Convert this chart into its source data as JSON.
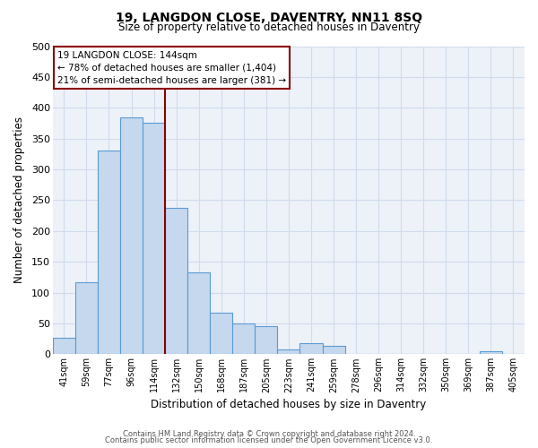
{
  "title": "19, LANGDON CLOSE, DAVENTRY, NN11 8SQ",
  "subtitle": "Size of property relative to detached houses in Daventry",
  "xlabel": "Distribution of detached houses by size in Daventry",
  "ylabel": "Number of detached properties",
  "categories": [
    "41sqm",
    "59sqm",
    "77sqm",
    "96sqm",
    "114sqm",
    "132sqm",
    "150sqm",
    "168sqm",
    "187sqm",
    "205sqm",
    "223sqm",
    "241sqm",
    "259sqm",
    "278sqm",
    "296sqm",
    "314sqm",
    "332sqm",
    "350sqm",
    "369sqm",
    "387sqm",
    "405sqm"
  ],
  "values": [
    27,
    117,
    330,
    385,
    375,
    238,
    133,
    68,
    50,
    45,
    8,
    18,
    13,
    0,
    0,
    0,
    0,
    0,
    0,
    5,
    0
  ],
  "bar_color": "#c5d8ee",
  "bar_edge_color": "#5b9bd5",
  "grid_color": "#d0dcec",
  "background_color": "#edf1f8",
  "marker_index": 5,
  "marker_color": "#8b0000",
  "annotation_title": "19 LANGDON CLOSE: 144sqm",
  "annotation_line1": "← 78% of detached houses are smaller (1,404)",
  "annotation_line2": "21% of semi-detached houses are larger (381) →",
  "annotation_box_color": "#ffffff",
  "annotation_border_color": "#8b0000",
  "ylim": [
    0,
    500
  ],
  "yticks": [
    0,
    50,
    100,
    150,
    200,
    250,
    300,
    350,
    400,
    450,
    500
  ],
  "footer1": "Contains HM Land Registry data © Crown copyright and database right 2024.",
  "footer2": "Contains public sector information licensed under the Open Government Licence v3.0."
}
